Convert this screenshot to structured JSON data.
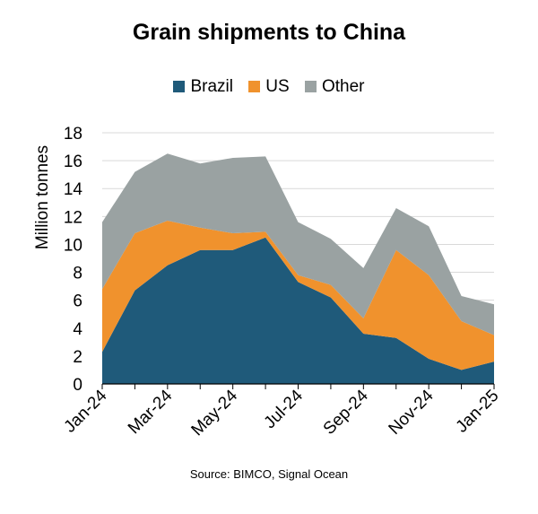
{
  "chart_data": {
    "type": "area",
    "stacked": true,
    "title": "Grain shipments to China",
    "ylabel": "Million tonnes",
    "xlabel": "",
    "source": "Source: BIMCO, Signal Ocean",
    "ylim": [
      0,
      18
    ],
    "yticks": [
      0,
      2,
      4,
      6,
      8,
      10,
      12,
      14,
      16,
      18
    ],
    "grid": true,
    "legend_position": "top",
    "x": [
      "2024-01",
      "2024-02",
      "2024-03",
      "2024-04",
      "2024-05",
      "2024-06",
      "2024-07",
      "2024-08",
      "2024-09",
      "2024-10",
      "2024-11",
      "2024-12",
      "2025-01"
    ],
    "xtick_labels": [
      "Jan-24",
      "Mar-24",
      "May-24",
      "Jul-24",
      "Sep-24",
      "Nov-24",
      "Jan-25"
    ],
    "series": [
      {
        "name": "Brazil",
        "color": "#1f5a7a",
        "values": [
          2.3,
          6.7,
          8.5,
          9.6,
          9.6,
          10.5,
          7.3,
          6.2,
          3.6,
          3.3,
          1.8,
          1.0,
          1.6
        ]
      },
      {
        "name": "US",
        "color": "#f0922d",
        "values": [
          4.5,
          4.1,
          3.2,
          1.6,
          1.2,
          0.4,
          0.5,
          0.9,
          1.1,
          6.3,
          6.0,
          3.5,
          1.9
        ]
      },
      {
        "name": "Other",
        "color": "#9aa2a2",
        "values": [
          4.8,
          4.4,
          4.8,
          4.6,
          5.4,
          5.4,
          3.8,
          3.3,
          3.6,
          3.0,
          3.5,
          1.8,
          2.2
        ]
      }
    ]
  }
}
